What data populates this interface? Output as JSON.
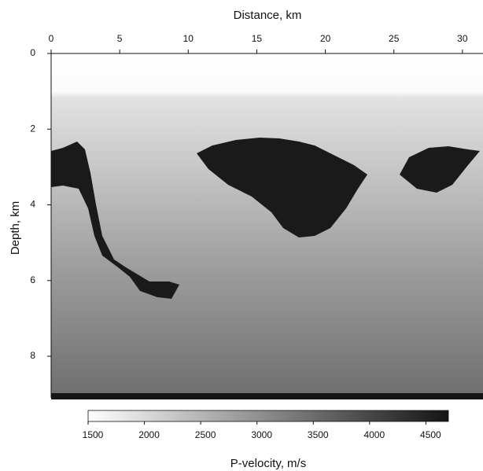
{
  "chart_data": {
    "type": "image",
    "xlabel": "Distance, km",
    "ylabel": "Depth, km",
    "xlim": [
      0,
      31.5
    ],
    "xticks": [
      0,
      5,
      10,
      15,
      20,
      25,
      30
    ],
    "ylim": [
      0,
      9.1
    ],
    "yticks": [
      0,
      2,
      4,
      6,
      8
    ],
    "colorbar": {
      "label": "P-velocity, m/s",
      "lim": [
        1500,
        4700
      ],
      "ticks": [
        1500,
        2000,
        2500,
        3000,
        3500,
        4000,
        4500
      ],
      "colors": [
        "#ffffff",
        "#141414"
      ]
    }
  }
}
